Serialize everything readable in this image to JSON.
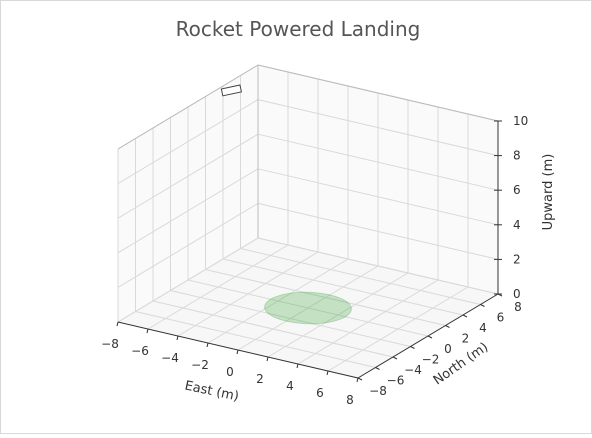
{
  "chart_data": {
    "type": "3d-line",
    "title": "Rocket Powered Landing",
    "xlabel": "East (m)",
    "ylabel": "North (m)",
    "zlabel": "Upward (m)",
    "xlim": [
      -8,
      8
    ],
    "ylim": [
      -8,
      8
    ],
    "zlim": [
      0,
      10
    ],
    "xticks": [
      "−8",
      "−6",
      "−4",
      "−2",
      "0",
      "2",
      "4",
      "6",
      "8"
    ],
    "yticks": [
      "−8",
      "−6",
      "−4",
      "−2",
      "0",
      "2",
      "4",
      "6",
      "8"
    ],
    "zticks": [
      "0",
      "2",
      "4",
      "6",
      "8",
      "10"
    ],
    "grid": true,
    "landing_zone": {
      "center": [
        0,
        0,
        0
      ],
      "radius": 2.5,
      "color": "#2ca02c",
      "opacity": 0.25
    },
    "legend": {
      "placement": "top-left",
      "entries": [
        ""
      ]
    }
  }
}
